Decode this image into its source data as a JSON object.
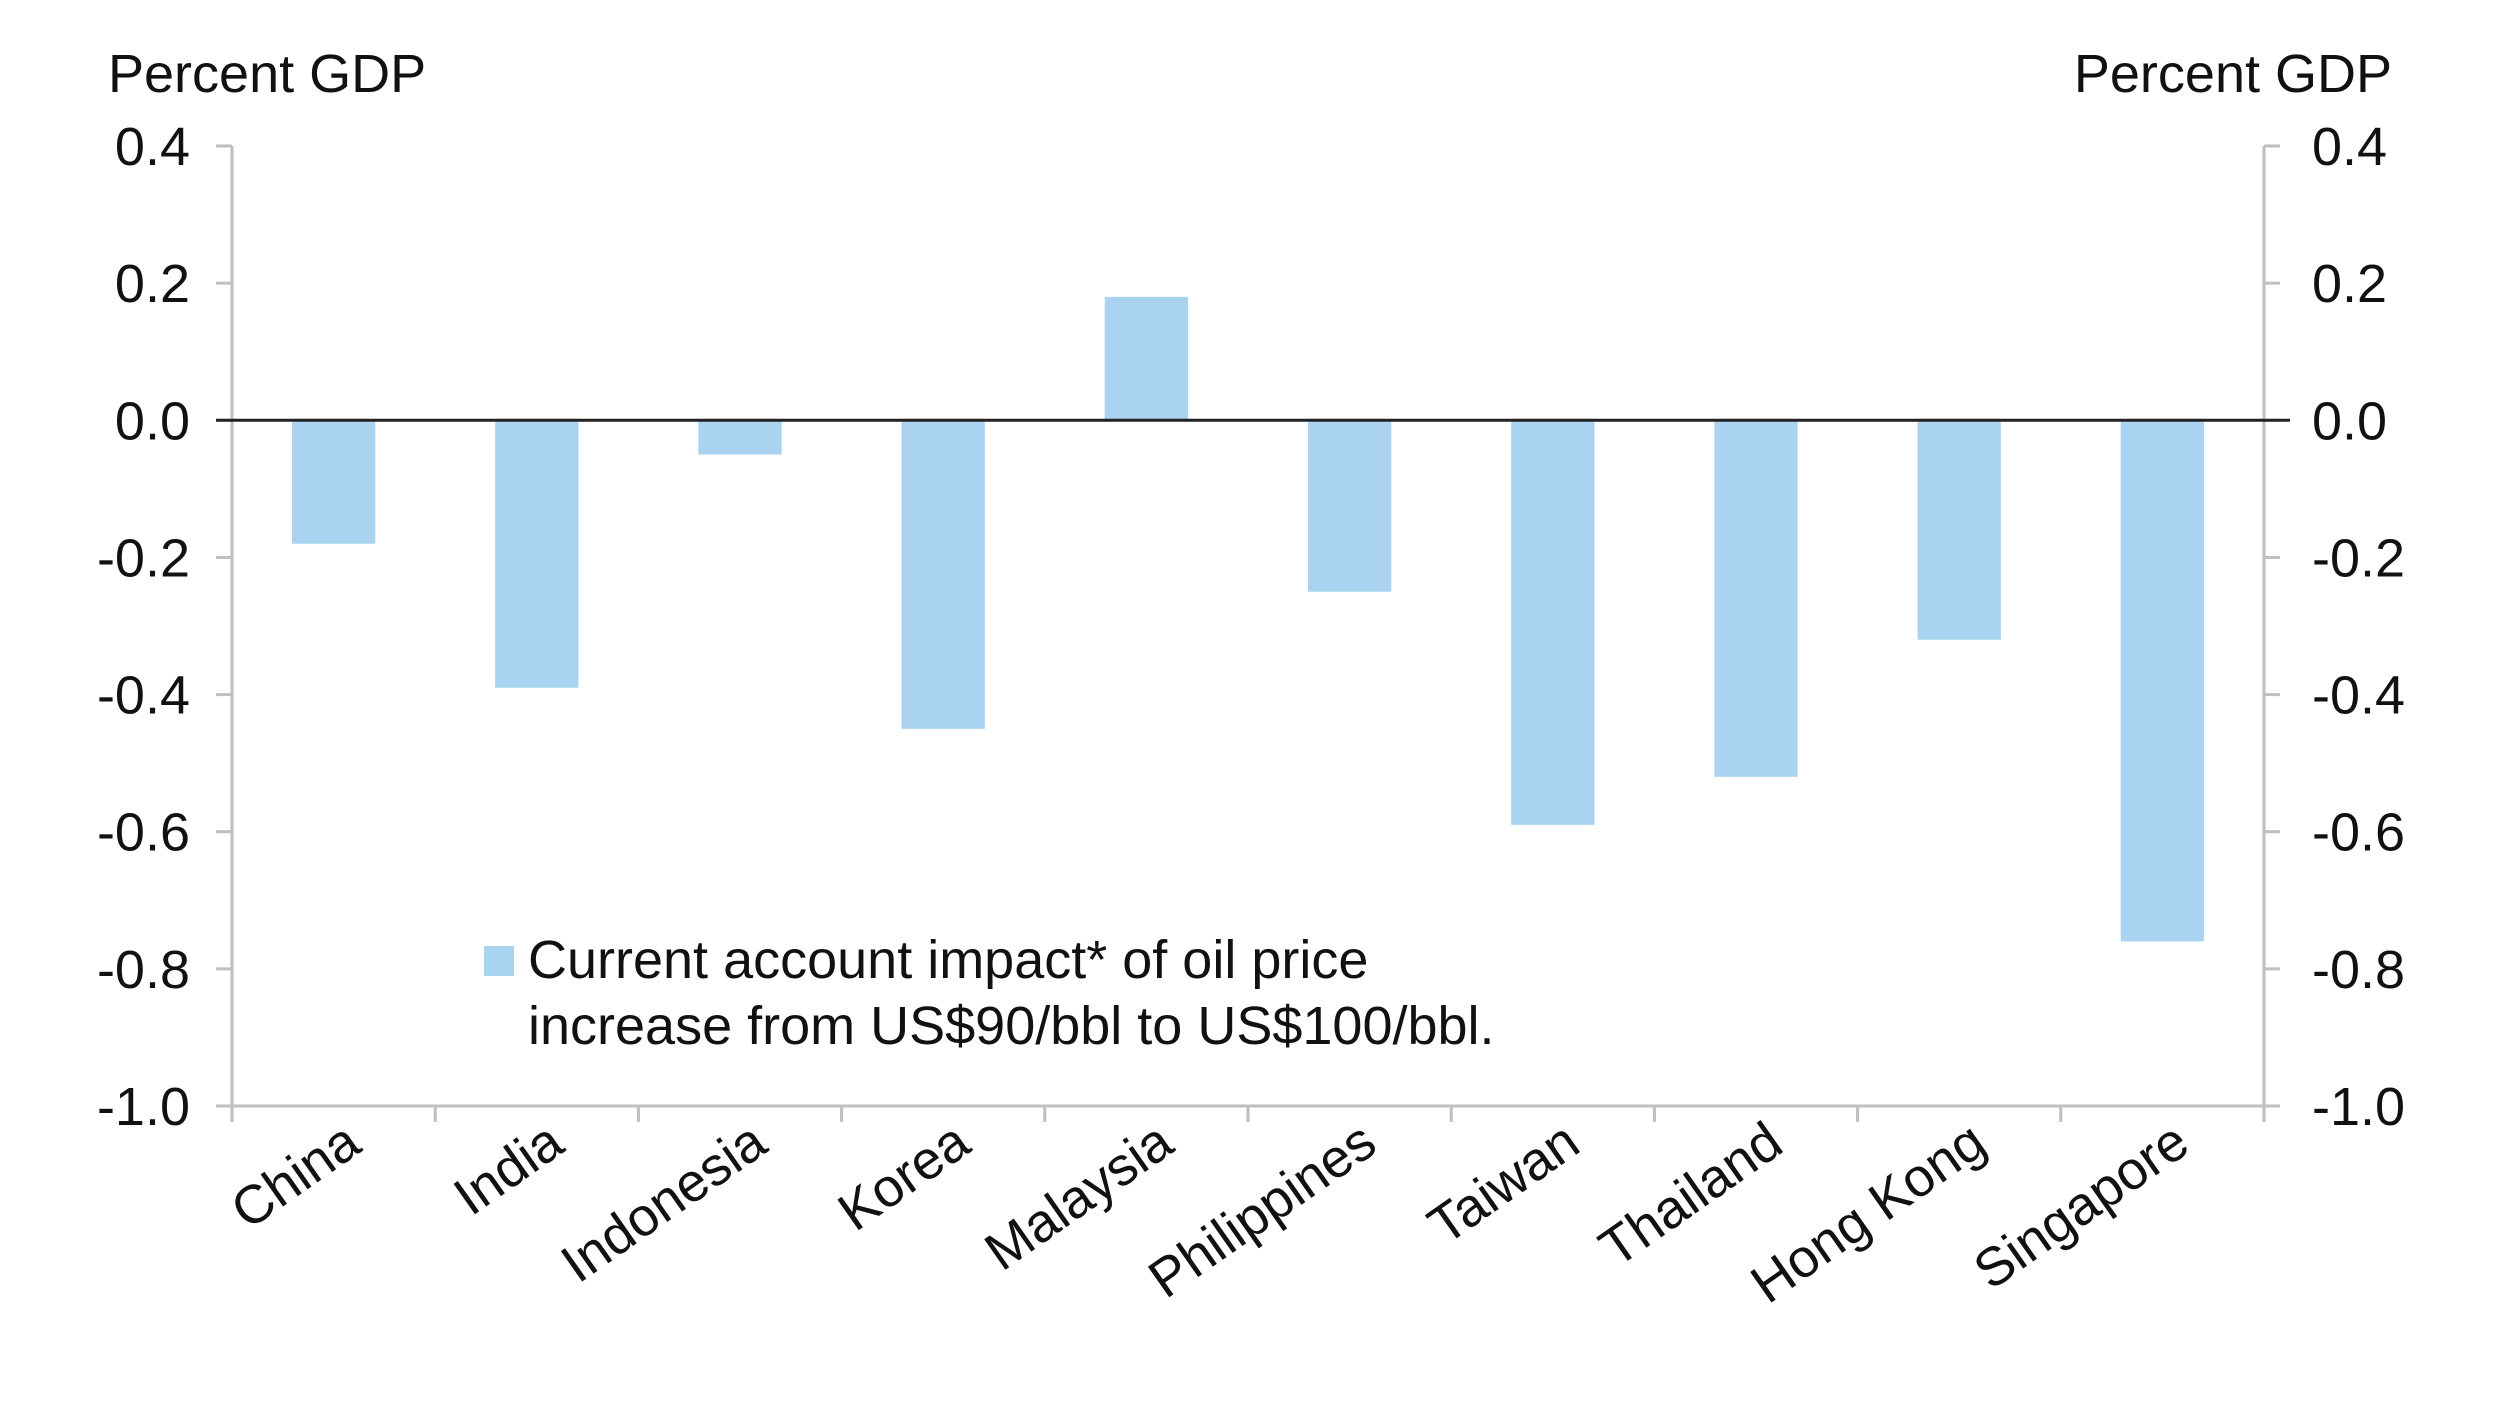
{
  "chart_data": {
    "type": "bar",
    "left_axis_label": "Percent GDP",
    "right_axis_label": "Percent GDP",
    "ylim": [
      -1.0,
      0.4
    ],
    "yticks": [
      "0.4",
      "0.2",
      "0.0",
      "-0.2",
      "-0.4",
      "-0.6",
      "-0.8",
      "-1.0"
    ],
    "ytick_values": [
      0.4,
      0.2,
      0.0,
      -0.2,
      -0.4,
      -0.6,
      -0.8,
      -1.0
    ],
    "categories": [
      "China",
      "India",
      "Indonesia",
      "Korea",
      "Malaysia",
      "Philippines",
      "Taiwan",
      "Thailand",
      "Hong Kong",
      "Singapore"
    ],
    "series": [
      {
        "name": "Current account impact* of oil price increase from US$90/bbl to US$100/bbl.",
        "values": [
          -0.18,
          -0.39,
          -0.05,
          -0.45,
          0.18,
          -0.25,
          -0.59,
          -0.52,
          -0.32,
          -0.76
        ]
      }
    ],
    "legend": {
      "line1": "Current account impact* of oil price",
      "line2": "increase from US$90/bbl to US$100/bbl.",
      "position": "bottom-left"
    },
    "grid": false,
    "colors": {
      "bar": "#a9d3f0",
      "axis": "#bfbfbf",
      "zero_line": "#222222"
    }
  }
}
